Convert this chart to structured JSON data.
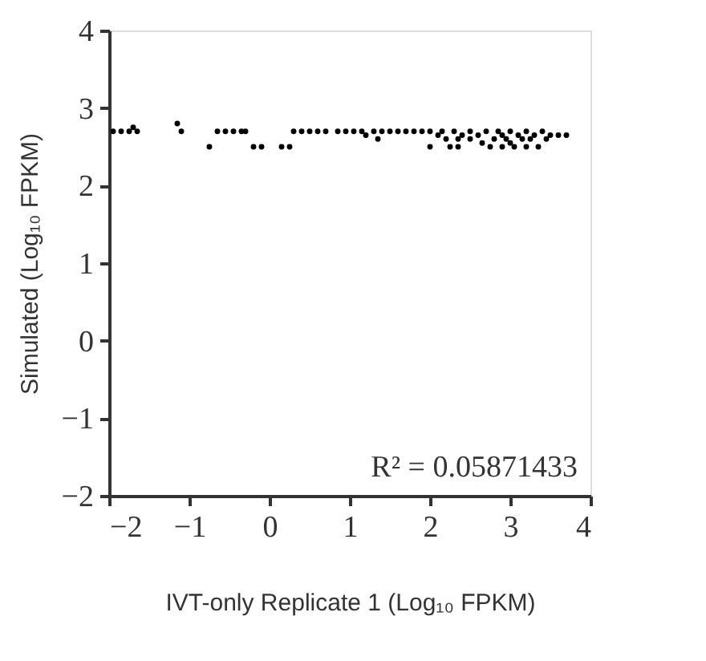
{
  "chart_data": {
    "type": "scatter",
    "xlabel": "IVT-only Replicate 1 (Log₁₀ FPKM)",
    "ylabel": "Simulated (Log₁₀ FPKM)",
    "annotations": [
      "R² = 0.05871433"
    ],
    "xlim": [
      -2,
      4
    ],
    "ylim": [
      -2,
      4
    ],
    "xticks": [
      -2,
      -1,
      0,
      1,
      2,
      3,
      4
    ],
    "yticks": [
      -2,
      -1,
      0,
      1,
      2,
      3,
      4
    ],
    "grid": false,
    "marker": "circle",
    "x": [
      -1.95,
      -1.85,
      -1.75,
      -1.7,
      -1.65,
      -1.15,
      -1.1,
      -0.75,
      -0.65,
      -0.55,
      -0.45,
      -0.35,
      -0.3,
      -0.2,
      -0.1,
      0.15,
      0.25,
      0.3,
      0.4,
      0.5,
      0.6,
      0.7,
      0.85,
      0.95,
      1.05,
      1.15,
      1.2,
      1.3,
      1.35,
      1.4,
      1.5,
      1.6,
      1.7,
      1.8,
      1.9,
      2.0,
      2.0,
      2.1,
      2.15,
      2.2,
      2.25,
      2.3,
      2.35,
      2.35,
      2.4,
      2.5,
      2.5,
      2.6,
      2.65,
      2.7,
      2.75,
      2.8,
      2.85,
      2.9,
      2.9,
      2.95,
      3.0,
      3.0,
      3.05,
      3.1,
      3.15,
      3.2,
      3.2,
      3.25,
      3.3,
      3.35,
      3.4,
      3.45,
      3.5,
      3.6,
      3.7
    ],
    "series": [
      {
        "color": "#000000",
        "values": [
          2.7,
          2.7,
          2.7,
          2.75,
          2.7,
          2.8,
          2.7,
          2.5,
          2.7,
          2.7,
          2.7,
          2.7,
          2.7,
          2.5,
          2.5,
          2.5,
          2.5,
          2.7,
          2.7,
          2.7,
          2.7,
          2.7,
          2.7,
          2.7,
          2.7,
          2.7,
          2.65,
          2.7,
          2.6,
          2.7,
          2.7,
          2.7,
          2.7,
          2.7,
          2.7,
          2.7,
          2.5,
          2.65,
          2.7,
          2.6,
          2.5,
          2.7,
          2.6,
          2.5,
          2.65,
          2.7,
          2.6,
          2.65,
          2.55,
          2.7,
          2.5,
          2.6,
          2.7,
          2.5,
          2.65,
          2.6,
          2.7,
          2.55,
          2.5,
          2.65,
          2.6,
          2.7,
          2.5,
          2.6,
          2.65,
          2.5,
          2.7,
          2.6,
          2.65,
          2.65,
          2.65
        ]
      }
    ]
  }
}
